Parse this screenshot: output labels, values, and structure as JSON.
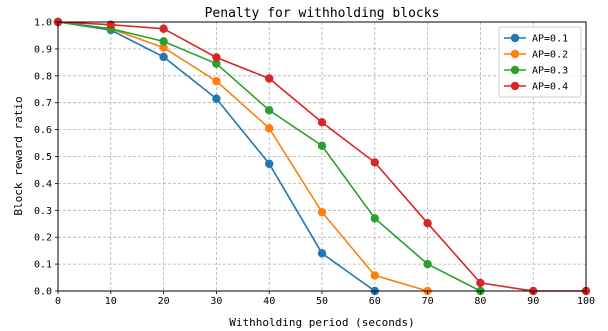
{
  "chart_data": {
    "type": "line",
    "title": "Penalty for withholding blocks",
    "xlabel": "Withholding period (seconds)",
    "ylabel": "Block reward ratio",
    "xlim": [
      0,
      100
    ],
    "ylim": [
      0,
      1.0
    ],
    "xticks": [
      "0",
      "10",
      "20",
      "30",
      "40",
      "50",
      "60",
      "70",
      "80",
      "90",
      "100"
    ],
    "yticks": [
      "0.0",
      "0.1",
      "0.2",
      "0.3",
      "0.4",
      "0.5",
      "0.6",
      "0.7",
      "0.8",
      "0.9",
      "1.0"
    ],
    "grid": true,
    "legend_position": "top-right",
    "series": [
      {
        "name": "AP=0.1",
        "color": "#1f77b4",
        "x": [
          0,
          10,
          20,
          30,
          40,
          50,
          60
        ],
        "y": [
          1.0,
          0.97,
          0.87,
          0.715,
          0.473,
          0.14,
          0.0
        ]
      },
      {
        "name": "AP=0.2",
        "color": "#ff7f0e",
        "x": [
          0,
          10,
          20,
          30,
          40,
          50,
          60,
          70
        ],
        "y": [
          1.0,
          0.975,
          0.905,
          0.78,
          0.605,
          0.293,
          0.058,
          0.0
        ]
      },
      {
        "name": "AP=0.3",
        "color": "#2ca02c",
        "x": [
          0,
          10,
          20,
          30,
          40,
          50,
          60,
          70,
          80
        ],
        "y": [
          1.0,
          0.975,
          0.928,
          0.845,
          0.672,
          0.54,
          0.27,
          0.1,
          0.0
        ]
      },
      {
        "name": "AP=0.4",
        "color": "#d62728",
        "x": [
          0,
          10,
          20,
          30,
          40,
          50,
          60,
          70,
          80,
          90,
          100
        ],
        "y": [
          1.0,
          0.99,
          0.975,
          0.868,
          0.79,
          0.627,
          0.478,
          0.252,
          0.03,
          0.0,
          0.0
        ]
      }
    ]
  }
}
